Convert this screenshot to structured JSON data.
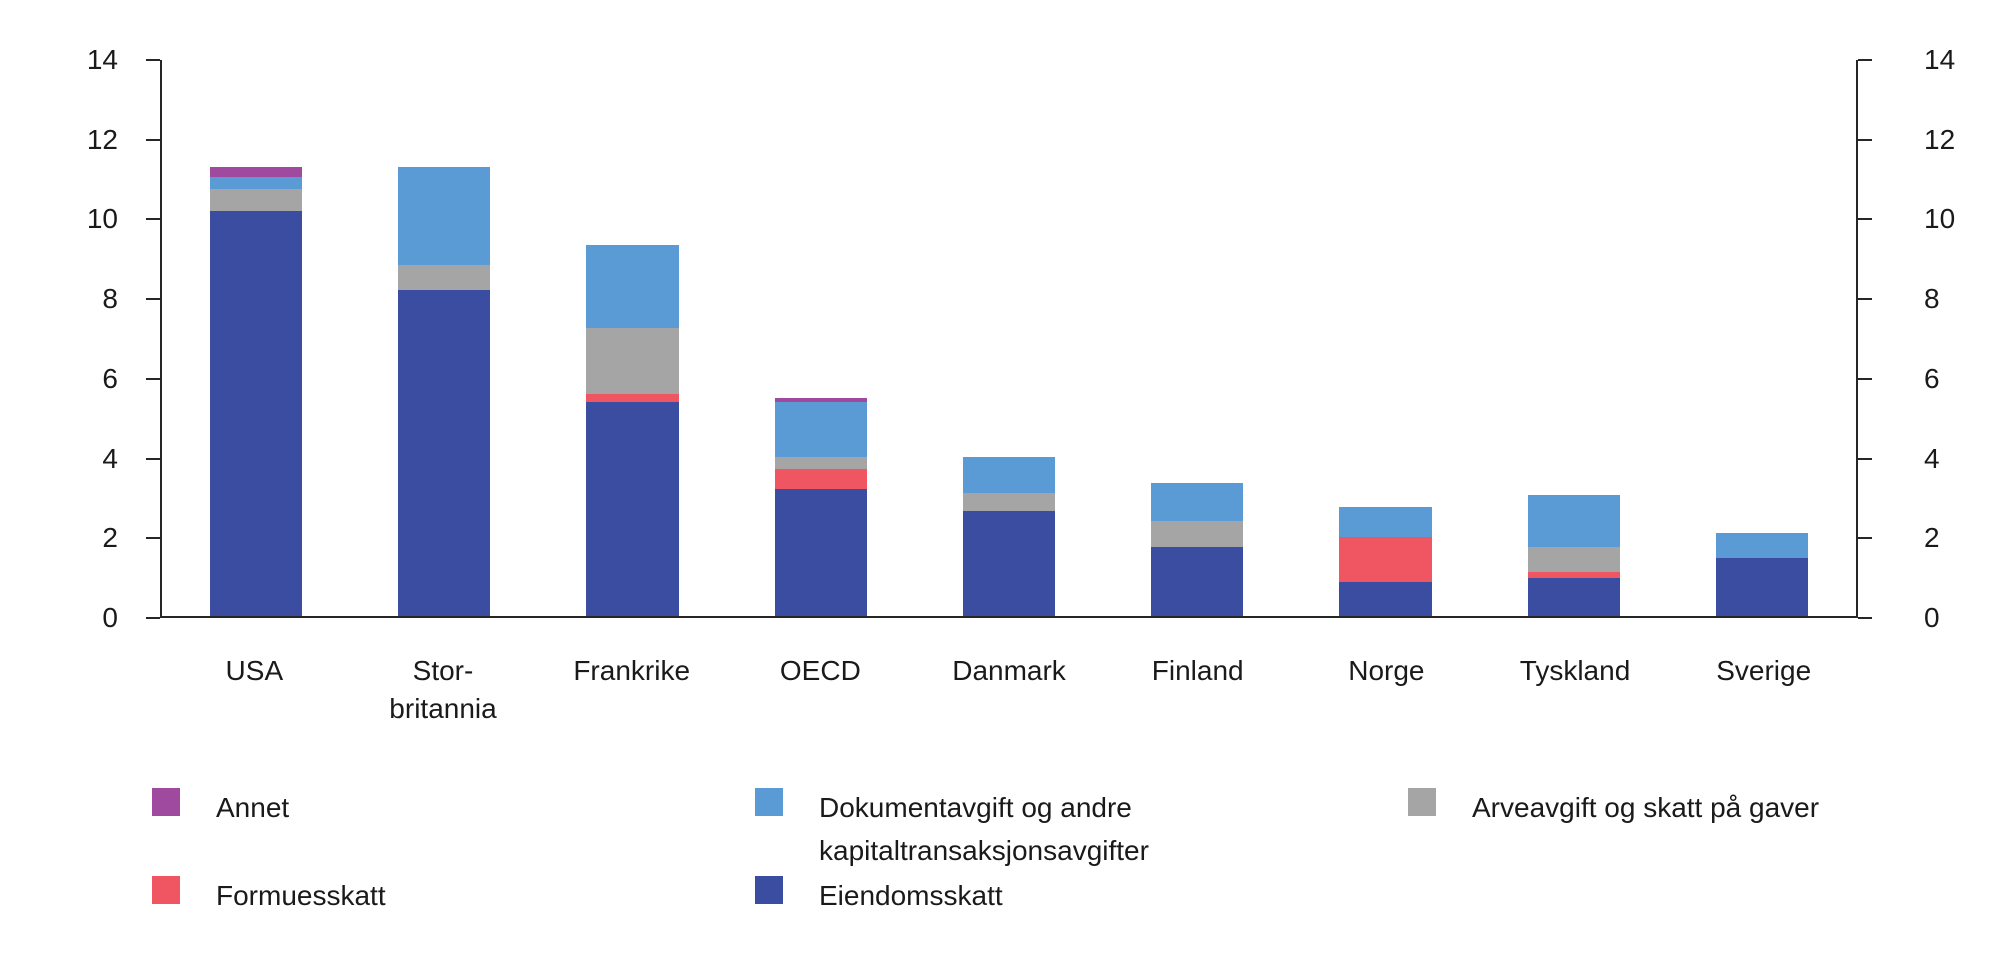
{
  "chart_data": {
    "type": "bar",
    "stacked": true,
    "categories": [
      "USA",
      "Stor-\nbritannia",
      "Frankrike",
      "OECD",
      "Danmark",
      "Finland",
      "Norge",
      "Tyskland",
      "Sverige"
    ],
    "series": [
      {
        "name": "Eiendomsskatt",
        "color": "#3b4da0",
        "values": [
          10.2,
          8.2,
          5.4,
          3.2,
          2.65,
          1.75,
          0.85,
          0.95,
          1.45
        ]
      },
      {
        "name": "Formuesskatt",
        "color": "#f05562",
        "values": [
          0,
          0,
          0.2,
          0.5,
          0,
          0,
          1.15,
          0.15,
          0
        ]
      },
      {
        "name": "Arveavgift og skatt på gaver",
        "color": "#a5a5a5",
        "values": [
          0.55,
          0.65,
          1.65,
          0.3,
          0.45,
          0.65,
          0,
          0.65,
          0
        ]
      },
      {
        "name": "Dokumentavgift og andre kapitaltransaksjonsavgifter",
        "color": "#5b9bd5",
        "values": [
          0.3,
          2.45,
          2.1,
          1.4,
          0.9,
          0.95,
          0.75,
          1.3,
          0.65
        ]
      },
      {
        "name": "Annet",
        "color": "#9f4a9f",
        "values": [
          0.25,
          0,
          0,
          0.1,
          0,
          0,
          0,
          0,
          0
        ]
      }
    ],
    "ylim": [
      0,
      14
    ],
    "yticks": [
      0,
      2,
      4,
      6,
      8,
      10,
      12,
      14
    ],
    "grid": false,
    "legend_position": "bottom",
    "title": "",
    "xlabel": "",
    "ylabel": ""
  },
  "legend": {
    "items": [
      {
        "label": "Annet",
        "color": "#9f4a9f"
      },
      {
        "label": "Dokumentavgift og andre\nkapitaltransaksjonsavgifter",
        "color": "#5b9bd5"
      },
      {
        "label": "Arveavgift og skatt på gaver",
        "color": "#a5a5a5"
      },
      {
        "label": "Formuesskatt",
        "color": "#f05562"
      },
      {
        "label": "Eiendomsskatt",
        "color": "#3b4da0"
      }
    ]
  }
}
